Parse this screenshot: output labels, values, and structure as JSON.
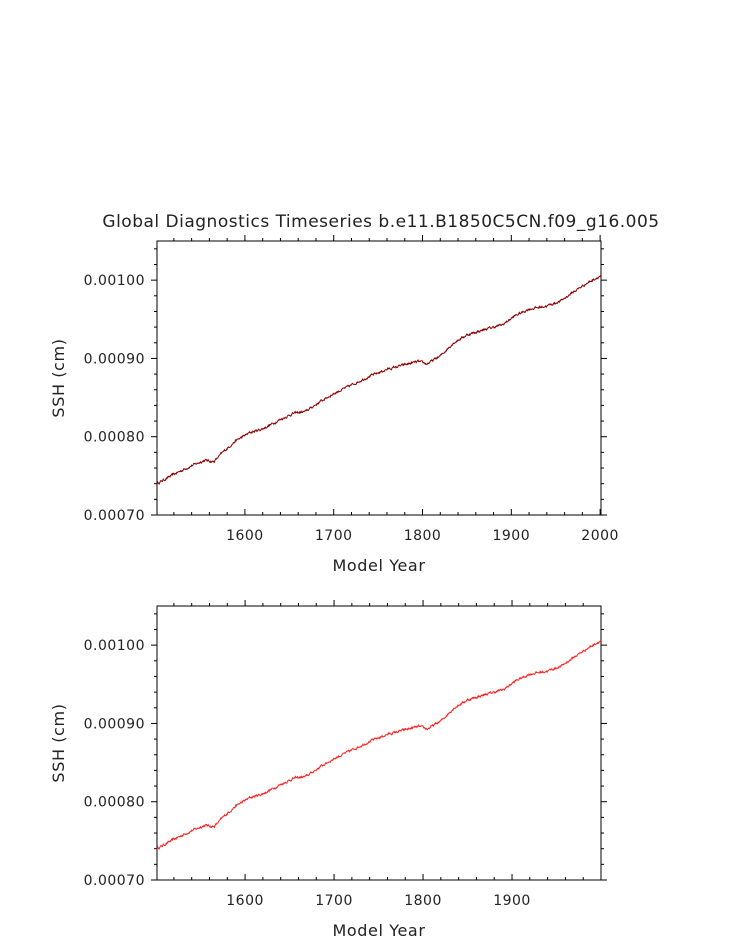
{
  "title": "Global Diagnostics Timeseries b.e11.B1850C5CN.f09_g16.005",
  "chart_data": [
    {
      "type": "line",
      "xlabel": "Model Year",
      "ylabel": "SSH (cm)",
      "xlim": [
        1501,
        2001
      ],
      "ylim": [
        0.0007,
        0.00105
      ],
      "xticks": [
        "1600",
        "1700",
        "1800",
        "1900",
        "2000"
      ],
      "yticks": [
        "0.00070",
        "0.00080",
        "0.00090",
        "0.00100"
      ],
      "grid": false,
      "series": [
        {
          "color": "#8b0000",
          "x": [
            1501,
            1520,
            1540,
            1555,
            1565,
            1575,
            1590,
            1605,
            1620,
            1640,
            1655,
            1668,
            1685,
            1700,
            1720,
            1740,
            1760,
            1780,
            1795,
            1805,
            1820,
            1835,
            1850,
            1870,
            1890,
            1905,
            1920,
            1940,
            1955,
            1970,
            1985,
            2001
          ],
          "values": [
            0.00074,
            0.000752,
            0.000763,
            0.00077,
            0.000768,
            0.00078,
            0.000795,
            0.000805,
            0.00081,
            0.000822,
            0.00083,
            0.000832,
            0.000845,
            0.000855,
            0.000866,
            0.000877,
            0.000886,
            0.000892,
            0.000896,
            0.000893,
            0.000903,
            0.00092,
            0.00093,
            0.000937,
            0.000943,
            0.000955,
            0.000963,
            0.000967,
            0.000973,
            0.000985,
            0.000996,
            0.001006
          ]
        }
      ]
    },
    {
      "type": "line",
      "xlabel": "Model Year",
      "ylabel": "SSH (cm)",
      "xlim": [
        1501,
        2000
      ],
      "ylim": [
        0.0007,
        0.00105
      ],
      "xticks": [
        "1600",
        "1700",
        "1800",
        "1900"
      ],
      "yticks": [
        "0.00070",
        "0.00080",
        "0.00090",
        "0.00100"
      ],
      "grid": false,
      "series": [
        {
          "color": "#ff2020",
          "x": [
            1501,
            1520,
            1540,
            1555,
            1565,
            1575,
            1590,
            1605,
            1620,
            1640,
            1655,
            1668,
            1685,
            1700,
            1720,
            1740,
            1760,
            1780,
            1795,
            1805,
            1820,
            1835,
            1850,
            1870,
            1890,
            1905,
            1920,
            1940,
            1955,
            1970,
            1985,
            2000
          ],
          "values": [
            0.00074,
            0.000752,
            0.000763,
            0.00077,
            0.000768,
            0.00078,
            0.000795,
            0.000805,
            0.00081,
            0.000822,
            0.00083,
            0.000832,
            0.000845,
            0.000855,
            0.000866,
            0.000877,
            0.000886,
            0.000892,
            0.000896,
            0.000893,
            0.000903,
            0.00092,
            0.00093,
            0.000937,
            0.000943,
            0.000955,
            0.000963,
            0.000967,
            0.000973,
            0.000985,
            0.000996,
            0.001006
          ]
        }
      ]
    }
  ]
}
